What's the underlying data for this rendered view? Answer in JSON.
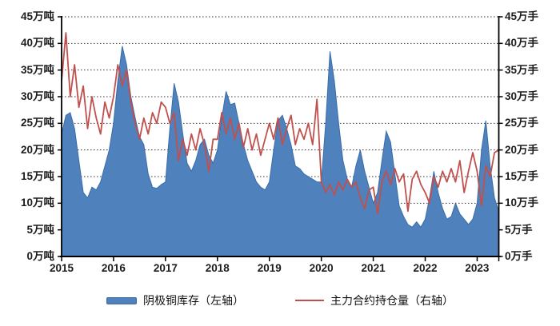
{
  "chart_data": {
    "type": "area",
    "combo": "area (left axis) + line (right axis)",
    "title": "",
    "x_interval": "monthly",
    "x_start": "2015-01",
    "x_end": "2023-06",
    "x_tick_labels": [
      "2015",
      "2016",
      "2017",
      "2018",
      "2019",
      "2020",
      "2021",
      "2022",
      "2023"
    ],
    "left_axis": {
      "unit": "万吨",
      "min": 0,
      "max": 45,
      "step": 5,
      "tick_labels": [
        "0万吨",
        "5万吨",
        "10万吨",
        "15万吨",
        "20万吨",
        "25万吨",
        "30万吨",
        "35万吨",
        "40万吨",
        "45万吨"
      ]
    },
    "right_axis": {
      "unit": "万手",
      "min": 0,
      "max": 45,
      "step": 5,
      "tick_labels": [
        "0万手",
        "5万手",
        "10万手",
        "15万手",
        "20万手",
        "25万手",
        "30万手",
        "35万手",
        "40万手",
        "45万手"
      ]
    },
    "grid": "horizontal dotted lines every 5 units, on",
    "legend_position": "bottom-center",
    "series": [
      {
        "name": "阴极铜库存（左轴）",
        "type": "area",
        "axis": "left",
        "color": "#4F81BD",
        "values": [
          23,
          26.5,
          27,
          24,
          18,
          12,
          11,
          13,
          12.5,
          14,
          17,
          20,
          25,
          33,
          39.5,
          36,
          30,
          26,
          22.5,
          21,
          15.5,
          13,
          12.8,
          13.5,
          14,
          24,
          32.5,
          29,
          23,
          17.5,
          16,
          18,
          21,
          22,
          19,
          17.5,
          20,
          26,
          31,
          28.5,
          28.8,
          25,
          21,
          18,
          16,
          14,
          13,
          12.5,
          14,
          20,
          25.5,
          26.5,
          24,
          21,
          17,
          16.5,
          15.5,
          15,
          14.5,
          14,
          14,
          25,
          38.5,
          33,
          25,
          18,
          14.5,
          13,
          17,
          20,
          16,
          13,
          10,
          12,
          18,
          23.5,
          21.5,
          15.5,
          9.5,
          7.5,
          6,
          5.5,
          6.5,
          5.5,
          7,
          11,
          16,
          12,
          9,
          7,
          7.5,
          10,
          8,
          7,
          6,
          7,
          10,
          20,
          25.5,
          17,
          11,
          8.5
        ]
      },
      {
        "name": "主力合约持仓量（右轴）",
        "type": "line",
        "axis": "right",
        "color": "#C0504D",
        "values": [
          33,
          42,
          30,
          36,
          28,
          32,
          24,
          30,
          26,
          23,
          29,
          26,
          30,
          36,
          32,
          35,
          29,
          25,
          22,
          26,
          23,
          27,
          25,
          29,
          28,
          25,
          27,
          18,
          22,
          19,
          23,
          20,
          24,
          21,
          16,
          22,
          22,
          27,
          23,
          26,
          22,
          25,
          20.5,
          24,
          20,
          23,
          19,
          22,
          25,
          22,
          26,
          21,
          24,
          26.5,
          21,
          24,
          22,
          25,
          21,
          29.5,
          14,
          12,
          13.5,
          11.5,
          14,
          12.5,
          14.5,
          13,
          14,
          11,
          9,
          12.5,
          13,
          8,
          14,
          16,
          13.5,
          16.5,
          14,
          15.5,
          8.5,
          14.5,
          16,
          13.5,
          12,
          10,
          15,
          13,
          16,
          14,
          16.5,
          14,
          18,
          12,
          16,
          19.5,
          16,
          9.5,
          17,
          15,
          19.5,
          20
        ]
      }
    ]
  },
  "legend": {
    "items": [
      {
        "label": "阴极铜库存（左轴）"
      },
      {
        "label": "主力合约持仓量（右轴）"
      }
    ]
  }
}
